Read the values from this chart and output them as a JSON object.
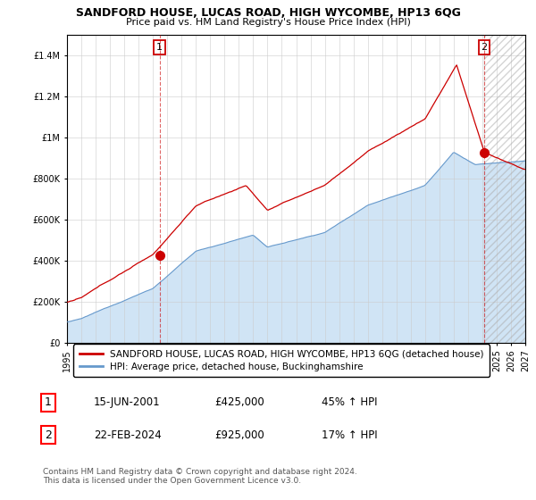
{
  "title": "SANDFORD HOUSE, LUCAS ROAD, HIGH WYCOMBE, HP13 6QG",
  "subtitle": "Price paid vs. HM Land Registry's House Price Index (HPI)",
  "legend_line1": "SANDFORD HOUSE, LUCAS ROAD, HIGH WYCOMBE, HP13 6QG (detached house)",
  "legend_line2": "HPI: Average price, detached house, Buckinghamshire",
  "transaction1_date": "15-JUN-2001",
  "transaction1_price": "£425,000",
  "transaction1_hpi": "45% ↑ HPI",
  "transaction2_date": "22-FEB-2024",
  "transaction2_price": "£925,000",
  "transaction2_hpi": "17% ↑ HPI",
  "footnote": "Contains HM Land Registry data © Crown copyright and database right 2024.\nThis data is licensed under the Open Government Licence v3.0.",
  "house_color": "#cc0000",
  "hpi_color": "#6699cc",
  "hpi_fill_color": "#d0e4f5",
  "ylim": [
    0,
    1500000
  ],
  "yticks": [
    0,
    200000,
    400000,
    600000,
    800000,
    1000000,
    1200000,
    1400000
  ],
  "ytick_labels": [
    "£0",
    "£200K",
    "£400K",
    "£600K",
    "£800K",
    "£1M",
    "£1.2M",
    "£1.4M"
  ],
  "xmin_year": 1995,
  "xmax_year": 2027,
  "xticks_years": [
    1995,
    1996,
    1997,
    1998,
    1999,
    2000,
    2001,
    2002,
    2003,
    2004,
    2005,
    2006,
    2007,
    2008,
    2009,
    2010,
    2011,
    2012,
    2013,
    2014,
    2015,
    2016,
    2017,
    2018,
    2019,
    2020,
    2021,
    2022,
    2023,
    2024,
    2025,
    2026,
    2027
  ],
  "transaction1_x": 2001.46,
  "transaction1_y": 425000,
  "transaction2_x": 2024.13,
  "transaction2_y": 925000,
  "background_color": "#ffffff",
  "grid_color": "#cccccc"
}
